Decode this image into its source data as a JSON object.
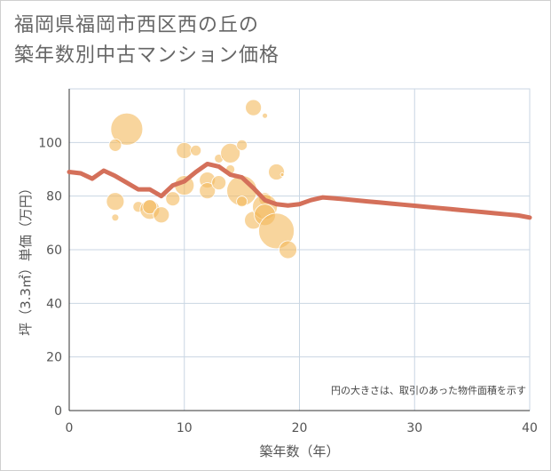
{
  "title": {
    "line1": "福岡県福岡市西区西の丘の",
    "line2": "築年数別中古マンション価格"
  },
  "colors": {
    "bubble": "#f3b95b",
    "line": "#d4705a",
    "grid": "#c9d6e3",
    "text": "#555555"
  },
  "chart_data": {
    "type": "scatter",
    "xlabel": "築年数（年）",
    "ylabel": "坪（3.3㎡）単価（万円）",
    "xlim": [
      0,
      40
    ],
    "ylim": [
      0,
      120
    ],
    "xticks": [
      "0",
      "10",
      "20",
      "30",
      "40"
    ],
    "yticks": [
      "0",
      "20",
      "40",
      "60",
      "80",
      "100"
    ],
    "grid": true,
    "note": "円の大きさは、取引のあった物件面積を示す",
    "bubbles": [
      {
        "x": 5,
        "y": 105,
        "s": 18
      },
      {
        "x": 4,
        "y": 99,
        "s": 7
      },
      {
        "x": 4,
        "y": 78,
        "s": 10
      },
      {
        "x": 4,
        "y": 72,
        "s": 4
      },
      {
        "x": 6,
        "y": 76,
        "s": 6
      },
      {
        "x": 7,
        "y": 75,
        "s": 11
      },
      {
        "x": 7,
        "y": 76,
        "s": 8
      },
      {
        "x": 8,
        "y": 73,
        "s": 9
      },
      {
        "x": 9,
        "y": 79,
        "s": 8
      },
      {
        "x": 10,
        "y": 97,
        "s": 9
      },
      {
        "x": 10,
        "y": 84,
        "s": 11
      },
      {
        "x": 11,
        "y": 97,
        "s": 6
      },
      {
        "x": 12,
        "y": 86,
        "s": 9
      },
      {
        "x": 12,
        "y": 82,
        "s": 9
      },
      {
        "x": 13,
        "y": 94,
        "s": 5
      },
      {
        "x": 13,
        "y": 85,
        "s": 8
      },
      {
        "x": 14,
        "y": 96,
        "s": 11
      },
      {
        "x": 14,
        "y": 90,
        "s": 5
      },
      {
        "x": 15,
        "y": 99,
        "s": 6
      },
      {
        "x": 15,
        "y": 82,
        "s": 17
      },
      {
        "x": 15,
        "y": 78,
        "s": 6
      },
      {
        "x": 16,
        "y": 113,
        "s": 9
      },
      {
        "x": 16,
        "y": 71,
        "s": 10
      },
      {
        "x": 17,
        "y": 110,
        "s": 3
      },
      {
        "x": 17,
        "y": 79,
        "s": 7
      },
      {
        "x": 17,
        "y": 76,
        "s": 14
      },
      {
        "x": 17,
        "y": 73,
        "s": 12
      },
      {
        "x": 18,
        "y": 67,
        "s": 20
      },
      {
        "x": 18,
        "y": 89,
        "s": 9
      },
      {
        "x": 18.5,
        "y": 88,
        "s": 2
      },
      {
        "x": 19,
        "y": 60,
        "s": 10
      }
    ],
    "series": [
      {
        "x": [
          0,
          1,
          2,
          3,
          4,
          5,
          6,
          7,
          8,
          9,
          10,
          11,
          12,
          13,
          14,
          15,
          16,
          17,
          18,
          19,
          20,
          21,
          22,
          23,
          24,
          25,
          26,
          27,
          28,
          29,
          30,
          31,
          32,
          33,
          34,
          35,
          36,
          37,
          38,
          39,
          40
        ],
        "y": [
          89,
          88.5,
          86.5,
          89.5,
          87.5,
          85,
          82.5,
          82.5,
          80,
          84,
          85.5,
          89,
          92,
          91,
          88,
          87,
          83,
          78.5,
          77,
          76.5,
          77,
          78.5,
          79.5,
          79.2,
          78.8,
          78.4,
          78,
          77.6,
          77.2,
          76.8,
          76.4,
          76,
          75.6,
          75.2,
          74.8,
          74.4,
          74,
          73.6,
          73.2,
          72.8,
          72
        ]
      }
    ]
  }
}
